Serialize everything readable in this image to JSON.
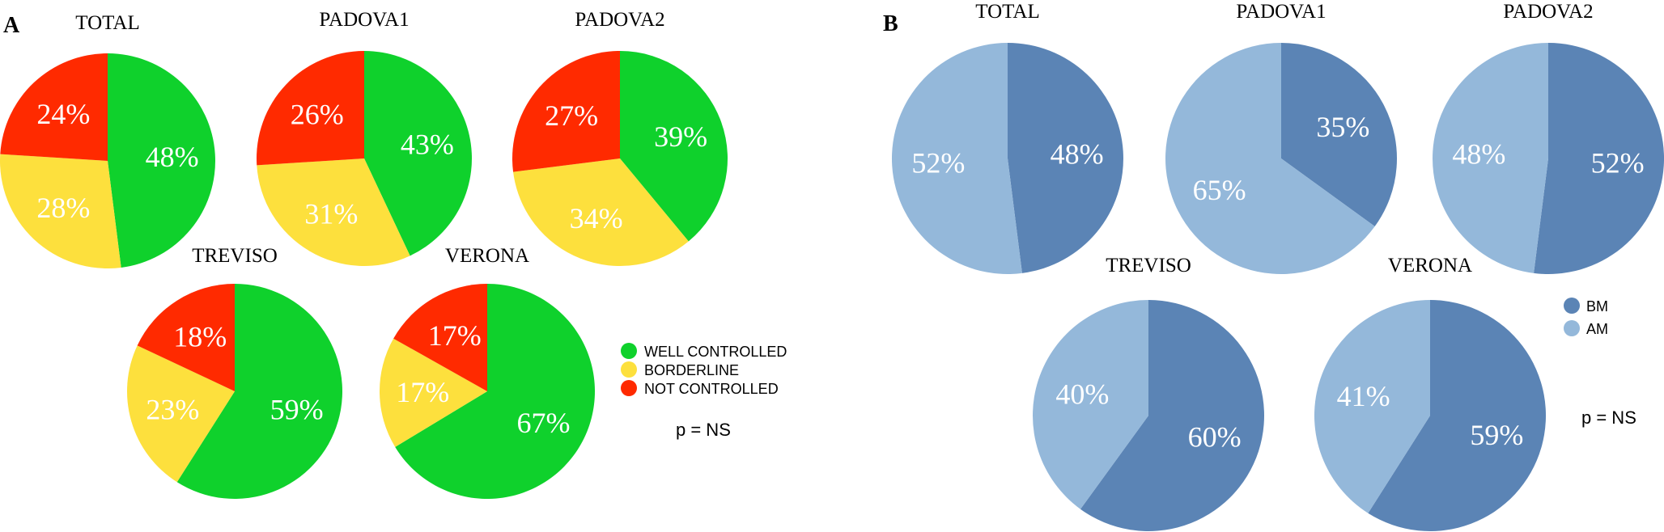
{
  "panels": [
    {
      "letter": "A",
      "legend": [
        "WELL CONTROLLED",
        "BORDERLINE",
        "NOT CONTROLLED"
      ],
      "legend_colors": [
        "#0fd12c",
        "#fde03d",
        "#ff2a00"
      ],
      "p_value": "p = NS"
    },
    {
      "letter": "B",
      "legend": [
        "BM",
        "AM"
      ],
      "legend_colors": [
        "#5b84b5",
        "#94b8da"
      ],
      "p_value": "p = NS"
    }
  ],
  "chart_data": [
    {
      "type": "pie",
      "title": "TOTAL",
      "categories": [
        "WELL CONTROLLED",
        "BORDERLINE",
        "NOT CONTROLLED"
      ],
      "values": [
        48,
        28,
        24
      ],
      "labels": [
        "48%",
        "28%",
        "24%"
      ],
      "colors": [
        "#0fd12c",
        "#fde03d",
        "#ff2a00"
      ]
    },
    {
      "type": "pie",
      "title": "PADOVA1",
      "categories": [
        "WELL CONTROLLED",
        "BORDERLINE",
        "NOT CONTROLLED"
      ],
      "values": [
        43,
        31,
        26
      ],
      "labels": [
        "43%",
        "31%",
        "26%"
      ],
      "colors": [
        "#0fd12c",
        "#fde03d",
        "#ff2a00"
      ]
    },
    {
      "type": "pie",
      "title": "PADOVA2",
      "categories": [
        "WELL CONTROLLED",
        "BORDERLINE",
        "NOT CONTROLLED"
      ],
      "values": [
        39,
        34,
        27
      ],
      "labels": [
        "39%",
        "34%",
        "27%"
      ],
      "colors": [
        "#0fd12c",
        "#fde03d",
        "#ff2a00"
      ]
    },
    {
      "type": "pie",
      "title": "TREVISO",
      "categories": [
        "WELL CONTROLLED",
        "BORDERLINE",
        "NOT CONTROLLED"
      ],
      "values": [
        59,
        23,
        18
      ],
      "labels": [
        "59%",
        "23%",
        "18%"
      ],
      "colors": [
        "#0fd12c",
        "#fde03d",
        "#ff2a00"
      ]
    },
    {
      "type": "pie",
      "title": "VERONA",
      "categories": [
        "WELL CONTROLLED",
        "BORDERLINE",
        "NOT CONTROLLED"
      ],
      "values": [
        67,
        17,
        17
      ],
      "labels": [
        "67%",
        "17%",
        "17%"
      ],
      "colors": [
        "#0fd12c",
        "#fde03d",
        "#ff2a00"
      ]
    },
    {
      "type": "pie",
      "title": "TOTAL",
      "categories": [
        "BM",
        "AM"
      ],
      "values": [
        48,
        52
      ],
      "labels": [
        "48%",
        "52%"
      ],
      "colors": [
        "#5b84b5",
        "#94b8da"
      ]
    },
    {
      "type": "pie",
      "title": "PADOVA1",
      "categories": [
        "BM",
        "AM"
      ],
      "values": [
        35,
        65
      ],
      "labels": [
        "35%",
        "65%"
      ],
      "colors": [
        "#5b84b5",
        "#94b8da"
      ]
    },
    {
      "type": "pie",
      "title": "PADOVA2",
      "categories": [
        "BM",
        "AM"
      ],
      "values": [
        52,
        48
      ],
      "labels": [
        "52%",
        "48%"
      ],
      "colors": [
        "#5b84b5",
        "#94b8da"
      ]
    },
    {
      "type": "pie",
      "title": "TREVISO",
      "categories": [
        "BM",
        "AM"
      ],
      "values": [
        60,
        40
      ],
      "labels": [
        "60%",
        "40%"
      ],
      "colors": [
        "#5b84b5",
        "#94b8da"
      ]
    },
    {
      "type": "pie",
      "title": "VERONA",
      "categories": [
        "BM",
        "AM"
      ],
      "values": [
        59,
        41
      ],
      "labels": [
        "59%",
        "41%"
      ],
      "colors": [
        "#5b84b5",
        "#94b8da"
      ]
    }
  ]
}
